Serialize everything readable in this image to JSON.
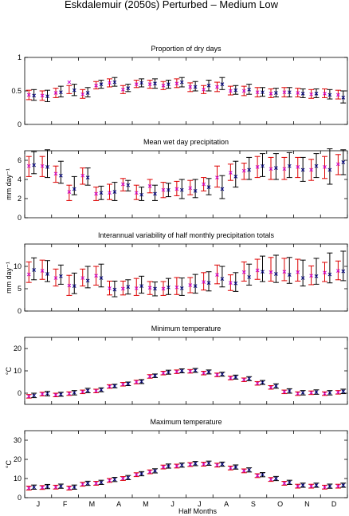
{
  "figure": {
    "title": "Eskdalemuir (2050s) Perturbed – Medium Low",
    "xlabel": "Half Months",
    "month_labels": [
      "J",
      "F",
      "M",
      "A",
      "M",
      "J",
      "J",
      "A",
      "S",
      "O",
      "N",
      "D"
    ]
  },
  "colors": {
    "black_bar": "#000000",
    "red_bar": "#dd0000",
    "black_marker": "#000080",
    "red_marker": "#cc00cc"
  },
  "chart_data": [
    {
      "type": "errorbar",
      "title": "Proportion of dry days",
      "ylabel": "",
      "ylim": [
        0,
        1
      ],
      "yticks": [
        0,
        0.5,
        1
      ],
      "ytick_labels": [
        "0",
        "0.5",
        "1"
      ],
      "x": [
        1,
        2,
        3,
        4,
        5,
        6,
        7,
        8,
        9,
        10,
        11,
        12,
        13,
        14,
        15,
        16,
        17,
        18,
        19,
        20,
        21,
        22,
        23,
        24
      ],
      "series": [
        {
          "color": "black",
          "values": [
            0.43,
            0.42,
            0.48,
            0.51,
            0.47,
            0.6,
            0.63,
            0.54,
            0.62,
            0.61,
            0.6,
            0.63,
            0.56,
            0.58,
            0.6,
            0.51,
            0.52,
            0.48,
            0.47,
            0.48,
            0.46,
            0.46,
            0.44,
            0.4
          ],
          "low": [
            0.36,
            0.34,
            0.41,
            0.43,
            0.41,
            0.54,
            0.57,
            0.49,
            0.56,
            0.54,
            0.54,
            0.56,
            0.5,
            0.5,
            0.52,
            0.45,
            0.45,
            0.42,
            0.41,
            0.41,
            0.4,
            0.4,
            0.38,
            0.32
          ],
          "high": [
            0.52,
            0.51,
            0.57,
            0.6,
            0.55,
            0.66,
            0.7,
            0.6,
            0.68,
            0.68,
            0.66,
            0.7,
            0.64,
            0.66,
            0.7,
            0.58,
            0.6,
            0.55,
            0.54,
            0.55,
            0.53,
            0.53,
            0.52,
            0.5
          ]
        },
        {
          "color": "red",
          "values": [
            0.44,
            0.43,
            0.47,
            0.63,
            0.45,
            0.58,
            0.62,
            0.52,
            0.6,
            0.6,
            0.58,
            0.61,
            0.56,
            0.52,
            0.56,
            0.5,
            0.5,
            0.48,
            0.46,
            0.48,
            0.47,
            0.45,
            0.46,
            0.44
          ],
          "low": [
            0.37,
            0.36,
            0.4,
            0.46,
            0.39,
            0.53,
            0.56,
            0.46,
            0.55,
            0.54,
            0.52,
            0.55,
            0.49,
            0.46,
            0.49,
            0.44,
            0.43,
            0.41,
            0.4,
            0.41,
            0.41,
            0.39,
            0.4,
            0.38
          ],
          "high": [
            0.51,
            0.5,
            0.54,
            0.58,
            0.52,
            0.64,
            0.68,
            0.58,
            0.66,
            0.66,
            0.64,
            0.68,
            0.62,
            0.58,
            0.63,
            0.57,
            0.57,
            0.55,
            0.53,
            0.55,
            0.54,
            0.52,
            0.53,
            0.51
          ]
        }
      ]
    },
    {
      "type": "errorbar",
      "title": "Mean wet day precipitation",
      "ylabel": "mm day⁻¹",
      "ylim": [
        0,
        7
      ],
      "yticks": [
        0,
        2,
        4,
        6
      ],
      "ytick_labels": [
        "0",
        "2",
        "4",
        "6"
      ],
      "x": [
        1,
        2,
        3,
        4,
        5,
        6,
        7,
        8,
        9,
        10,
        11,
        12,
        13,
        14,
        15,
        16,
        17,
        18,
        19,
        20,
        21,
        22,
        23,
        24
      ],
      "series": [
        {
          "color": "black",
          "values": [
            5.5,
            5.3,
            4.4,
            3.0,
            4.2,
            2.6,
            2.7,
            3.4,
            2.4,
            2.5,
            2.9,
            2.9,
            2.8,
            3.2,
            3.0,
            4.3,
            5.0,
            5.4,
            5.2,
            5.4,
            5.0,
            5.4,
            5.0,
            5.8
          ],
          "low": [
            4.6,
            4.2,
            3.6,
            2.4,
            3.4,
            1.9,
            1.8,
            2.8,
            1.8,
            1.8,
            2.2,
            2.0,
            2.1,
            2.4,
            2.0,
            3.2,
            4.0,
            4.3,
            4.0,
            4.2,
            3.8,
            4.2,
            3.5,
            4.5
          ],
          "high": [
            6.9,
            7.1,
            5.9,
            4.3,
            5.2,
            3.3,
            3.7,
            3.9,
            3.2,
            3.4,
            3.6,
            4.0,
            4.0,
            4.1,
            4.4,
            5.9,
            6.3,
            6.7,
            6.7,
            6.8,
            6.3,
            6.7,
            7.2,
            7.1
          ]
        },
        {
          "color": "red",
          "values": [
            5.4,
            5.4,
            4.6,
            2.7,
            4.4,
            2.5,
            2.6,
            3.5,
            2.6,
            3.3,
            2.9,
            3.0,
            3.1,
            3.5,
            4.2,
            4.7,
            4.9,
            5.3,
            5.1,
            5.1,
            5.3,
            5.0,
            5.3,
            5.6
          ],
          "low": [
            4.3,
            4.3,
            3.7,
            1.8,
            3.5,
            1.8,
            1.9,
            2.8,
            1.9,
            2.6,
            2.1,
            2.3,
            2.4,
            2.8,
            3.2,
            3.9,
            4.0,
            4.2,
            4.0,
            4.0,
            4.2,
            3.9,
            4.1,
            4.5
          ],
          "high": [
            6.4,
            6.4,
            5.4,
            3.4,
            5.2,
            3.2,
            3.5,
            4.1,
            3.4,
            4.0,
            3.7,
            3.8,
            3.9,
            4.2,
            5.4,
            5.6,
            5.7,
            6.4,
            6.3,
            6.3,
            6.3,
            6.1,
            6.4,
            6.6
          ]
        }
      ]
    },
    {
      "type": "errorbar",
      "title": "Interannual variability of half monthly precipitation totals",
      "ylabel": "mm day⁻¹",
      "ylim": [
        0,
        15
      ],
      "yticks": [
        0,
        5,
        10
      ],
      "ytick_labels": [
        "0",
        "5",
        "10"
      ],
      "x": [
        1,
        2,
        3,
        4,
        5,
        6,
        7,
        8,
        9,
        10,
        11,
        12,
        13,
        14,
        15,
        16,
        17,
        18,
        19,
        20,
        21,
        22,
        23,
        24
      ],
      "series": [
        {
          "color": "black",
          "values": [
            9.2,
            8.3,
            7.8,
            5.6,
            6.8,
            7.4,
            4.8,
            5.4,
            5.6,
            5.0,
            5.3,
            5.1,
            5.6,
            6.3,
            7.2,
            6.2,
            7.6,
            8.8,
            8.3,
            8.1,
            7.4,
            7.8,
            8.2,
            8.9
          ],
          "low": [
            7.0,
            6.6,
            6.0,
            3.9,
            5.2,
            5.4,
            3.2,
            3.8,
            4.0,
            3.4,
            3.7,
            3.5,
            4.0,
            4.5,
            5.4,
            4.4,
            5.8,
            6.6,
            6.4,
            6.2,
            5.6,
            6.0,
            6.3,
            6.8
          ],
          "high": [
            11.9,
            11.3,
            10.3,
            8.5,
            10.0,
            10.5,
            6.7,
            7.0,
            7.8,
            6.5,
            7.3,
            7.4,
            8.2,
            8.8,
            10.0,
            8.6,
            10.5,
            12.3,
            12.5,
            12.0,
            11.4,
            11.8,
            13.0,
            13.4
          ]
        },
        {
          "color": "red",
          "values": [
            8.2,
            9.0,
            7.4,
            5.7,
            7.4,
            7.9,
            5.1,
            5.0,
            5.1,
            5.2,
            5.0,
            5.3,
            5.8,
            6.5,
            8.1,
            6.3,
            8.7,
            9.1,
            8.7,
            8.8,
            8.7,
            7.9,
            8.6,
            9.0
          ],
          "low": [
            6.4,
            7.1,
            5.6,
            3.5,
            5.6,
            5.8,
            3.6,
            3.6,
            3.5,
            3.7,
            3.5,
            3.7,
            4.1,
            4.7,
            6.1,
            4.6,
            6.7,
            7.1,
            6.7,
            6.8,
            6.7,
            5.9,
            6.6,
            7.0
          ],
          "high": [
            11.0,
            11.4,
            9.4,
            8.0,
            9.4,
            10.0,
            6.7,
            6.7,
            7.3,
            6.6,
            6.6,
            7.5,
            7.5,
            8.6,
            10.3,
            8.1,
            11.0,
            11.6,
            12.0,
            11.8,
            11.6,
            10.1,
            10.9,
            11.2
          ]
        }
      ]
    },
    {
      "type": "errorbar",
      "title": "Minimum temperature",
      "ylabel": "°C",
      "ylim": [
        -5,
        25
      ],
      "yticks": [
        0,
        10,
        20
      ],
      "ytick_labels": [
        "0",
        "10",
        "20"
      ],
      "x": [
        1,
        2,
        3,
        4,
        5,
        6,
        7,
        8,
        9,
        10,
        11,
        12,
        13,
        14,
        15,
        16,
        17,
        18,
        19,
        20,
        21,
        22,
        23,
        24
      ],
      "series": [
        {
          "color": "black",
          "values": [
            -1.0,
            -0.2,
            -0.5,
            0.2,
            1.2,
            1.5,
            3.2,
            4.2,
            5.2,
            7.8,
            9.4,
            10.0,
            10.2,
            9.5,
            8.5,
            7.2,
            6.5,
            4.8,
            3.2,
            1.0,
            0.2,
            0.5,
            0.2,
            0.8
          ],
          "low": [
            -2.0,
            -1.2,
            -1.4,
            -0.8,
            0.2,
            0.6,
            2.4,
            3.4,
            4.3,
            7.0,
            8.5,
            9.1,
            9.3,
            8.6,
            7.6,
            6.3,
            5.6,
            3.9,
            2.2,
            0.0,
            -0.8,
            -0.5,
            -0.8,
            -0.2
          ],
          "high": [
            0.0,
            0.8,
            0.4,
            1.2,
            2.2,
            2.4,
            4.0,
            5.0,
            6.1,
            8.6,
            10.3,
            10.9,
            11.1,
            10.4,
            9.4,
            8.1,
            7.4,
            5.7,
            4.2,
            2.0,
            1.2,
            1.5,
            1.2,
            1.8
          ]
        },
        {
          "color": "red",
          "values": [
            -1.4,
            -0.4,
            -0.8,
            -0.2,
            0.6,
            1.0,
            3.0,
            4.0,
            5.0,
            7.5,
            9.0,
            9.6,
            9.8,
            9.0,
            8.2,
            6.8,
            6.0,
            4.4,
            2.6,
            0.6,
            -0.2,
            0.2,
            -0.2,
            0.4
          ],
          "low": [
            -2.2,
            -1.2,
            -1.6,
            -1.0,
            -0.2,
            0.2,
            2.2,
            3.2,
            4.2,
            6.7,
            8.2,
            8.8,
            9.0,
            8.2,
            7.4,
            6.0,
            5.2,
            3.6,
            1.8,
            -0.2,
            -1.0,
            -0.6,
            -1.0,
            -0.4
          ],
          "high": [
            -0.6,
            0.4,
            0.0,
            0.6,
            1.4,
            1.8,
            3.8,
            4.8,
            5.8,
            8.3,
            9.8,
            10.4,
            10.6,
            9.8,
            9.0,
            7.6,
            6.8,
            5.2,
            3.4,
            1.4,
            0.6,
            1.0,
            0.6,
            1.2
          ]
        }
      ]
    },
    {
      "type": "errorbar",
      "title": "Maximum temperature",
      "ylabel": "°C",
      "ylim": [
        0,
        35
      ],
      "yticks": [
        0,
        10,
        20,
        30
      ],
      "ytick_labels": [
        "0",
        "10",
        "20",
        "30"
      ],
      "x": [
        1,
        2,
        3,
        4,
        5,
        6,
        7,
        8,
        9,
        10,
        11,
        12,
        13,
        14,
        15,
        16,
        17,
        18,
        19,
        20,
        21,
        22,
        23,
        24
      ],
      "series": [
        {
          "color": "black",
          "values": [
            5.5,
            5.8,
            6.0,
            5.5,
            7.5,
            8.0,
            9.5,
            10.5,
            12.5,
            14.0,
            16.5,
            17.0,
            17.8,
            18.0,
            17.5,
            16.0,
            14.5,
            12.0,
            10.0,
            8.0,
            6.5,
            6.5,
            6.0,
            6.5
          ],
          "low": [
            4.4,
            4.7,
            4.9,
            4.4,
            6.4,
            6.9,
            8.4,
            9.4,
            11.4,
            12.9,
            15.4,
            15.9,
            16.7,
            16.9,
            16.4,
            14.9,
            13.4,
            10.9,
            8.9,
            6.9,
            5.4,
            5.4,
            4.9,
            5.4
          ],
          "high": [
            6.6,
            6.9,
            7.1,
            6.6,
            8.6,
            9.1,
            10.6,
            11.6,
            13.6,
            15.1,
            17.6,
            18.1,
            18.9,
            19.1,
            18.6,
            17.1,
            15.6,
            13.1,
            11.1,
            9.1,
            7.6,
            7.6,
            7.1,
            7.6
          ]
        },
        {
          "color": "red",
          "values": [
            5.0,
            5.3,
            5.5,
            5.0,
            7.0,
            7.5,
            9.0,
            10.0,
            12.0,
            13.5,
            16.0,
            16.5,
            17.3,
            17.5,
            17.0,
            15.5,
            14.0,
            11.5,
            9.5,
            7.5,
            6.0,
            6.0,
            5.5,
            6.0
          ],
          "low": [
            4.0,
            4.3,
            4.5,
            4.0,
            6.0,
            6.5,
            8.0,
            9.0,
            11.0,
            12.5,
            15.0,
            15.5,
            16.3,
            16.5,
            16.0,
            14.5,
            13.0,
            10.5,
            8.5,
            6.5,
            5.0,
            5.0,
            4.5,
            5.0
          ],
          "high": [
            6.0,
            6.3,
            6.5,
            6.0,
            8.0,
            8.5,
            10.0,
            11.0,
            13.0,
            14.5,
            17.0,
            17.5,
            18.3,
            18.5,
            18.0,
            16.5,
            15.0,
            12.5,
            10.5,
            8.5,
            7.0,
            7.0,
            6.5,
            7.0
          ]
        }
      ]
    }
  ]
}
